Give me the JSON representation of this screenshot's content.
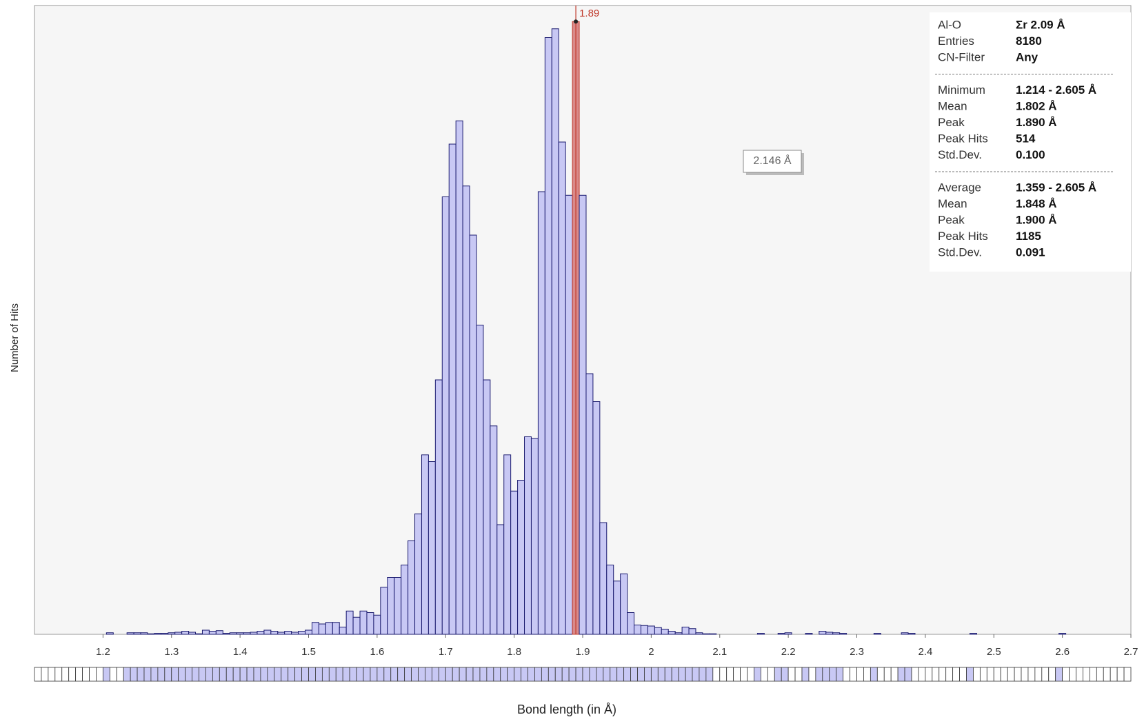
{
  "chart_data": {
    "type": "histogram",
    "y_label": "Number of Hits",
    "x_label": "Bond length (in Å)",
    "xlim": [
      1.1,
      2.7
    ],
    "xticks": [
      1.2,
      1.3,
      1.4,
      1.5,
      1.6,
      1.7,
      1.8,
      1.9,
      2.0,
      2.1,
      2.2,
      2.3,
      2.4,
      2.5,
      2.6,
      2.7
    ],
    "ylim": [
      0,
      1216
    ],
    "color": "#c8c8f4",
    "edge_color": "#1a1a6e",
    "bins": [
      1.195,
      1.205,
      1.215,
      1.225,
      1.235,
      1.245,
      1.255,
      1.265,
      1.275,
      1.285,
      1.295,
      1.305,
      1.315,
      1.325,
      1.335,
      1.345,
      1.355,
      1.365,
      1.375,
      1.385,
      1.395,
      1.405,
      1.415,
      1.425,
      1.435,
      1.445,
      1.455,
      1.465,
      1.475,
      1.485,
      1.495,
      1.505,
      1.515,
      1.525,
      1.535,
      1.545,
      1.555,
      1.565,
      1.575,
      1.585,
      1.595,
      1.605,
      1.615,
      1.625,
      1.635,
      1.645,
      1.655,
      1.665,
      1.675,
      1.685,
      1.695,
      1.705,
      1.715,
      1.725,
      1.735,
      1.745,
      1.755,
      1.765,
      1.775,
      1.785,
      1.795,
      1.805,
      1.815,
      1.825,
      1.835,
      1.845,
      1.855,
      1.865,
      1.875,
      1.885,
      1.895,
      1.905,
      1.915,
      1.925,
      1.935,
      1.945,
      1.955,
      1.965,
      1.975,
      1.985,
      1.995,
      2.005,
      2.015,
      2.025,
      2.035,
      2.045,
      2.055,
      2.065,
      2.075,
      2.085,
      2.095,
      2.105,
      2.115,
      2.125,
      2.135,
      2.145,
      2.155,
      2.165,
      2.175,
      2.185,
      2.195,
      2.205,
      2.215,
      2.225,
      2.235,
      2.245,
      2.255,
      2.265,
      2.275,
      2.285,
      2.295,
      2.305,
      2.315,
      2.325,
      2.335,
      2.345,
      2.355,
      2.365,
      2.375,
      2.385,
      2.395,
      2.405,
      2.415,
      2.425,
      2.435,
      2.445,
      2.455,
      2.465,
      2.475,
      2.485,
      2.495,
      2.505,
      2.515,
      2.525,
      2.535,
      2.545,
      2.555,
      2.565,
      2.575,
      2.585,
      2.595,
      2.605
    ],
    "values": [
      0,
      3,
      0,
      0,
      3,
      3,
      3,
      1,
      2,
      2,
      3,
      4,
      6,
      4,
      1,
      8,
      6,
      7,
      2,
      3,
      3,
      3,
      4,
      6,
      8,
      6,
      4,
      6,
      4,
      6,
      8,
      23,
      20,
      23,
      23,
      14,
      45,
      33,
      45,
      42,
      37,
      91,
      110,
      110,
      134,
      181,
      233,
      347,
      334,
      492,
      846,
      948,
      993,
      867,
      772,
      598,
      492,
      403,
      212,
      347,
      277,
      298,
      382,
      379,
      856,
      1154,
      1171,
      952,
      849,
      1185,
      849,
      504,
      450,
      216,
      134,
      103,
      117,
      42,
      18,
      17,
      16,
      13,
      10,
      6,
      3,
      14,
      11,
      3,
      1,
      1,
      0,
      0,
      0,
      0,
      0,
      0,
      2,
      0,
      0,
      2,
      3,
      0,
      0,
      2,
      0,
      6,
      4,
      3,
      2,
      0,
      0,
      0,
      0,
      2,
      0,
      0,
      0,
      3,
      2,
      0,
      0,
      0,
      0,
      0,
      0,
      0,
      0,
      2,
      0,
      0,
      0,
      0,
      0,
      0,
      0,
      0,
      0,
      0,
      0,
      0,
      2
    ],
    "marker": 1.89,
    "marker_color": "#c0392b",
    "marker_fill": "#d98a8a",
    "tooltip": "2.146 Å",
    "info_panel": [
      [
        [
          "Al-O",
          "Σr 2.09 Å"
        ],
        [
          "Entries",
          "8180"
        ],
        [
          "CN-Filter",
          "Any"
        ]
      ],
      [
        [
          "Minimum",
          "1.214 - 2.605 Å"
        ],
        [
          "Mean",
          "1.802 Å"
        ],
        [
          "Peak",
          "1.890 Å"
        ],
        [
          "Peak Hits",
          "514"
        ],
        [
          "Std.Dev.",
          "0.100"
        ]
      ],
      [
        [
          "Average",
          "1.359 - 2.605 Å"
        ],
        [
          "Mean",
          "1.848 Å"
        ],
        [
          "Peak",
          "1.900 Å"
        ],
        [
          "Peak Hits",
          "1185"
        ],
        [
          "Std.Dev.",
          "0.091"
        ]
      ]
    ]
  }
}
